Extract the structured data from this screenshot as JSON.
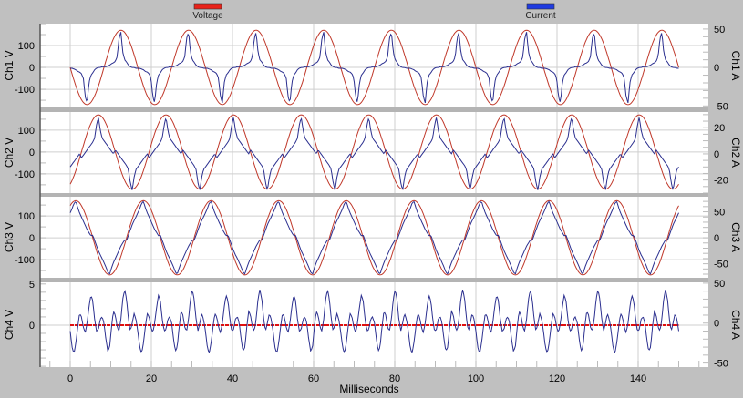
{
  "legend": [
    {
      "label": "Voltage",
      "color": "#e8231a"
    },
    {
      "label": "Current",
      "color": "#1f3be0"
    }
  ],
  "chart_data": {
    "type": "line",
    "xlabel": "Milliseconds",
    "xlim": [
      -7.4,
      157
    ],
    "xticks": [
      0,
      20,
      40,
      60,
      80,
      100,
      120,
      140
    ],
    "grid": true,
    "legend_placement": "top",
    "trace_colors": {
      "voltage": "#c0392b",
      "current": "#2b2f8f",
      "ch4_voltage": "#e01010"
    },
    "signal": {
      "frequency_hz": 60,
      "t_range_ms": [
        0,
        150
      ]
    },
    "panels": [
      {
        "left_label": "Ch1 V",
        "right_label": "Ch1 A",
        "left_ylim": [
          -183,
          200
        ],
        "right_ylim": [
          -52,
          57
        ],
        "left_ticks": [
          "100",
          "0",
          "-100"
        ],
        "right_ticks": [
          "50",
          "0",
          "-50"
        ],
        "voltage": {
          "amplitude_v": 170,
          "phase_deg": 180
        },
        "current": {
          "cycle_step_deg": 10,
          "cycle_a": [
            1,
            1,
            2,
            3,
            5,
            6,
            8,
            14,
            38,
            46,
            20,
            10,
            7,
            3,
            1,
            0,
            0,
            -1,
            -1,
            -1,
            -2,
            -3,
            -5,
            -6,
            -8,
            -14,
            -38,
            -46,
            -20,
            -10,
            -7,
            -3,
            -1,
            0,
            0,
            1
          ]
        }
      },
      {
        "left_label": "Ch2 V",
        "right_label": "Ch2 A",
        "left_ylim": [
          -188,
          183
        ],
        "right_ylim": [
          -30,
          32
        ],
        "left_ticks": [
          "100",
          "0",
          "-100"
        ],
        "right_ticks": [
          "20",
          "0",
          "-20"
        ],
        "voltage": {
          "amplitude_v": 170,
          "phase_deg": -60
        },
        "current": {
          "cycle_step_deg": 10,
          "cycle_a": [
            -3,
            -1,
            1,
            3,
            5,
            7,
            9,
            12,
            22,
            28,
            18,
            12,
            10,
            8,
            6,
            4,
            2,
            0,
            3,
            1,
            -1,
            -3,
            -5,
            -7,
            -9,
            -12,
            -22,
            -28,
            -18,
            -12,
            -10,
            -8,
            -6,
            -4,
            -2,
            0
          ]
        }
      },
      {
        "left_label": "Ch3 V",
        "right_label": "Ch3 A",
        "left_ylim": [
          -183,
          188
        ],
        "right_ylim": [
          -77,
          79
        ],
        "left_ticks": [
          "100",
          "0",
          "-100"
        ],
        "right_ticks": [
          "50",
          "0",
          "-50"
        ],
        "voltage": {
          "amplitude_v": 170,
          "phase_deg": 60
        },
        "current": {
          "cycle_step_deg": 10,
          "cycle_a": [
            -5,
            5,
            15,
            25,
            33,
            40,
            48,
            56,
            66,
            70,
            58,
            48,
            40,
            32,
            24,
            16,
            10,
            4,
            5,
            -5,
            -15,
            -25,
            -33,
            -40,
            -48,
            -56,
            -66,
            -70,
            -58,
            -48,
            -40,
            -32,
            -24,
            -16,
            -10,
            -4
          ]
        }
      },
      {
        "left_label": "Ch4 V",
        "right_label": "Ch4 A",
        "left_ylim": [
          -5.1,
          5.2
        ],
        "right_ylim": [
          -55,
          51
        ],
        "left_ticks": [
          "5",
          "0"
        ],
        "right_ticks": [
          "50",
          "0",
          "-50"
        ],
        "voltage": {
          "amplitude_v": 0,
          "phase_deg": 180
        },
        "current": {
          "cycle_step_deg": 10,
          "cycle_a": [
            0,
            -20,
            -35,
            -30,
            -5,
            15,
            10,
            -5,
            -10,
            5,
            30,
            42,
            30,
            5,
            -10,
            0,
            12,
            5,
            -10,
            -30,
            -38,
            -25,
            -5,
            12,
            8,
            -5,
            -12,
            0,
            20,
            35,
            28,
            5,
            -10,
            -8,
            5,
            8
          ]
        }
      }
    ]
  }
}
